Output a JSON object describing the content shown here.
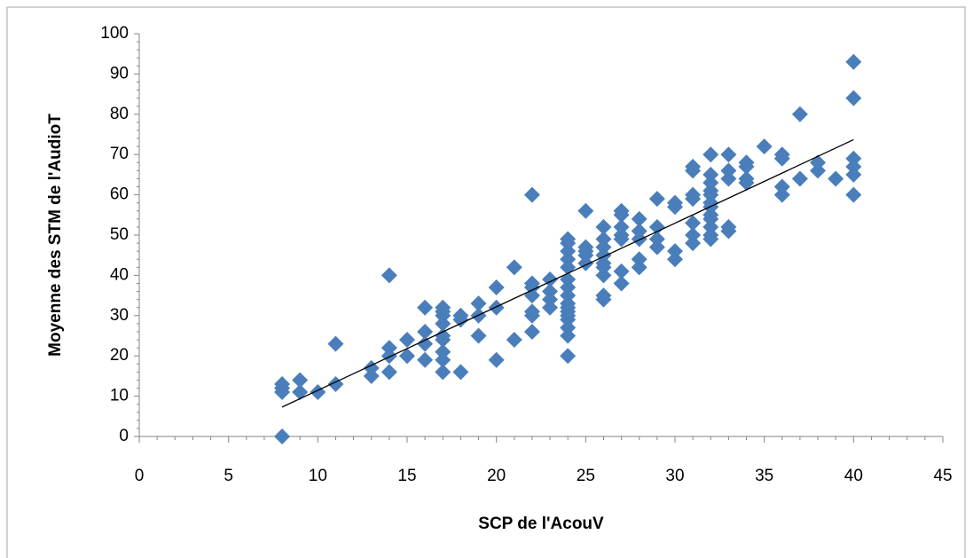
{
  "chart_data": {
    "type": "scatter",
    "xlabel": "SCP de l'AcouV",
    "ylabel": "Moyenne des STM de l'AudioT",
    "color": "#4a7ebb",
    "xlim": [
      0,
      45
    ],
    "xticks": [
      0,
      5,
      10,
      15,
      20,
      25,
      30,
      35,
      40,
      45
    ],
    "ylim": [
      0,
      100
    ],
    "yticks": [
      0,
      10,
      20,
      30,
      40,
      50,
      60,
      70,
      80,
      90,
      100
    ],
    "x": [
      8,
      8,
      8,
      8,
      9,
      9,
      10,
      11,
      11,
      13,
      13,
      14,
      14,
      14,
      14,
      15,
      15,
      16,
      16,
      16,
      16,
      17,
      17,
      17,
      17,
      17,
      17,
      17,
      17,
      17,
      18,
      18,
      18,
      19,
      19,
      19,
      20,
      20,
      20,
      21,
      21,
      22,
      22,
      22,
      22,
      22,
      22,
      22,
      23,
      23,
      23,
      23,
      24,
      24,
      24,
      24,
      24,
      24,
      24,
      24,
      24,
      24,
      24,
      24,
      24,
      24,
      24,
      24,
      25,
      25,
      25,
      25,
      25,
      26,
      26,
      26,
      26,
      26,
      26,
      26,
      26,
      26,
      27,
      27,
      27,
      27,
      27,
      27,
      27,
      28,
      28,
      28,
      28,
      28,
      29,
      29,
      29,
      29,
      30,
      30,
      30,
      30,
      31,
      31,
      31,
      31,
      31,
      31,
      31,
      32,
      32,
      32,
      32,
      32,
      32,
      32,
      32,
      32,
      32,
      32,
      32,
      33,
      33,
      33,
      33,
      33,
      34,
      34,
      34,
      34,
      35,
      36,
      36,
      36,
      36,
      37,
      37,
      38,
      38,
      39,
      40,
      40,
      40,
      40,
      40,
      40
    ],
    "values": [
      0,
      11,
      12,
      13,
      11,
      14,
      11,
      13,
      23,
      15,
      17,
      16,
      20,
      22,
      40,
      20,
      24,
      19,
      23,
      26,
      32,
      16,
      19,
      21,
      24,
      25,
      28,
      30,
      31,
      32,
      16,
      29,
      30,
      25,
      30,
      33,
      19,
      32,
      37,
      24,
      42,
      26,
      30,
      31,
      35,
      37,
      38,
      60,
      32,
      34,
      36,
      39,
      20,
      25,
      27,
      29,
      30,
      31,
      32,
      33,
      35,
      37,
      39,
      42,
      44,
      46,
      48,
      49,
      43,
      45,
      46,
      47,
      56,
      34,
      35,
      40,
      42,
      43,
      45,
      47,
      49,
      52,
      38,
      41,
      49,
      50,
      52,
      55,
      56,
      42,
      44,
      49,
      51,
      54,
      47,
      49,
      52,
      59,
      44,
      46,
      57,
      58,
      48,
      50,
      53,
      59,
      60,
      66,
      67,
      49,
      50,
      52,
      54,
      55,
      57,
      58,
      60,
      61,
      63,
      65,
      70,
      51,
      52,
      64,
      66,
      70,
      63,
      64,
      67,
      68,
      72,
      60,
      62,
      69,
      70,
      64,
      80,
      66,
      68,
      64,
      60,
      65,
      67,
      69,
      84,
      93
    ],
    "trendline": {
      "color": "#000000",
      "x": [
        8,
        40
      ],
      "values": [
        7.3,
        73.7
      ]
    }
  }
}
